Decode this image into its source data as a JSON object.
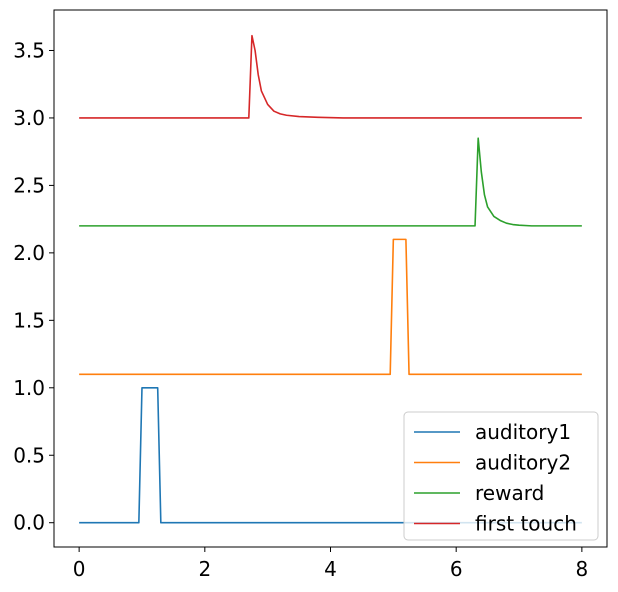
{
  "chart_data": {
    "type": "line",
    "title": "",
    "xlabel": "",
    "ylabel": "",
    "xlim": [
      -0.4,
      8.4
    ],
    "ylim": [
      -0.18,
      3.8
    ],
    "xticks": [
      0,
      2,
      4,
      6,
      8
    ],
    "xtick_labels": [
      "0",
      "2",
      "4",
      "6",
      "8"
    ],
    "yticks": [
      0.0,
      0.5,
      1.0,
      1.5,
      2.0,
      2.5,
      3.0,
      3.5
    ],
    "ytick_labels": [
      "0.0",
      "0.5",
      "1.0",
      "1.5",
      "2.0",
      "2.5",
      "3.0",
      "3.5"
    ],
    "grid": false,
    "legend_position": "lower-right",
    "series": [
      {
        "name": "auditory1",
        "color": "#1f77b4",
        "x": [
          0,
          0.95,
          1.0,
          1.25,
          1.3,
          8.0
        ],
        "y": [
          0.0,
          0.0,
          1.0,
          1.0,
          0.0,
          0.0
        ]
      },
      {
        "name": "auditory2",
        "color": "#ff7f0e",
        "x": [
          0,
          4.95,
          5.0,
          5.2,
          5.25,
          8.0
        ],
        "y": [
          1.1,
          1.1,
          2.1,
          2.1,
          1.1,
          1.1
        ]
      },
      {
        "name": "reward",
        "color": "#2ca02c",
        "x": [
          0,
          6.3,
          6.35,
          6.4,
          6.45,
          6.5,
          6.6,
          6.7,
          6.8,
          6.9,
          7.0,
          7.2,
          7.5,
          8.0
        ],
        "y": [
          2.2,
          2.2,
          2.85,
          2.6,
          2.43,
          2.34,
          2.27,
          2.24,
          2.22,
          2.21,
          2.205,
          2.2,
          2.2,
          2.2
        ]
      },
      {
        "name": "first touch",
        "color": "#d62728",
        "x": [
          0,
          2.7,
          2.75,
          2.8,
          2.85,
          2.9,
          3.0,
          3.1,
          3.2,
          3.3,
          3.5,
          3.8,
          4.2,
          8.0
        ],
        "y": [
          3.0,
          3.0,
          3.61,
          3.5,
          3.32,
          3.2,
          3.1,
          3.05,
          3.03,
          3.02,
          3.01,
          3.005,
          3.0,
          3.0
        ]
      }
    ]
  }
}
